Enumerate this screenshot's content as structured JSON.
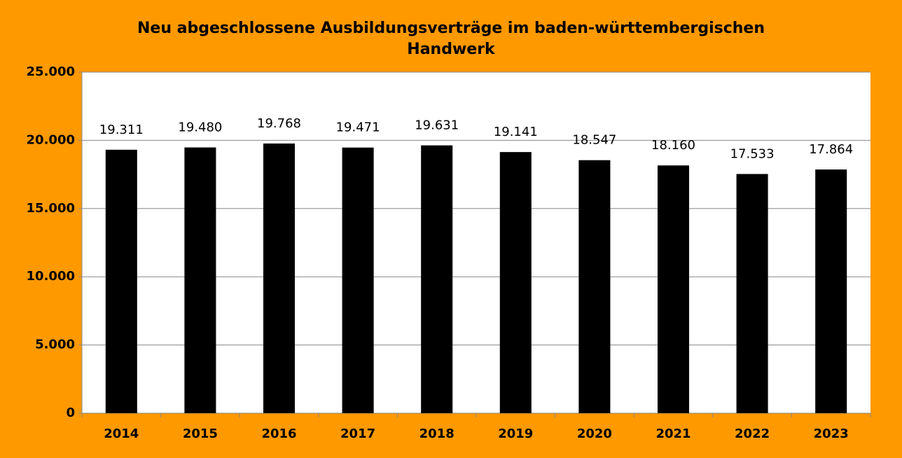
{
  "chart_data": {
    "type": "bar",
    "title": "Neu abgeschlossene Ausbildungsverträge im baden-württembergischen Handwerk",
    "categories": [
      "2014",
      "2015",
      "2016",
      "2017",
      "2018",
      "2019",
      "2020",
      "2021",
      "2022",
      "2023"
    ],
    "values": [
      19311,
      19480,
      19768,
      19471,
      19631,
      19141,
      18547,
      18160,
      17533,
      17864
    ],
    "value_labels": [
      "19.311",
      "19.480",
      "19.768",
      "19.471",
      "19.631",
      "19.141",
      "18.547",
      "18.160",
      "17.533",
      "17.864"
    ],
    "color": "#000000",
    "ylim": [
      0,
      25000
    ],
    "yticks": [
      0,
      {
        "value": 5000,
        "label": "5.000"
      },
      {
        "value": 10000,
        "label": "10.000"
      },
      {
        "value": 15000,
        "label": "15.000"
      },
      {
        "value": 20000,
        "label": "20.000"
      },
      {
        "value": 25000,
        "label": "25.000"
      }
    ],
    "grid": true
  }
}
